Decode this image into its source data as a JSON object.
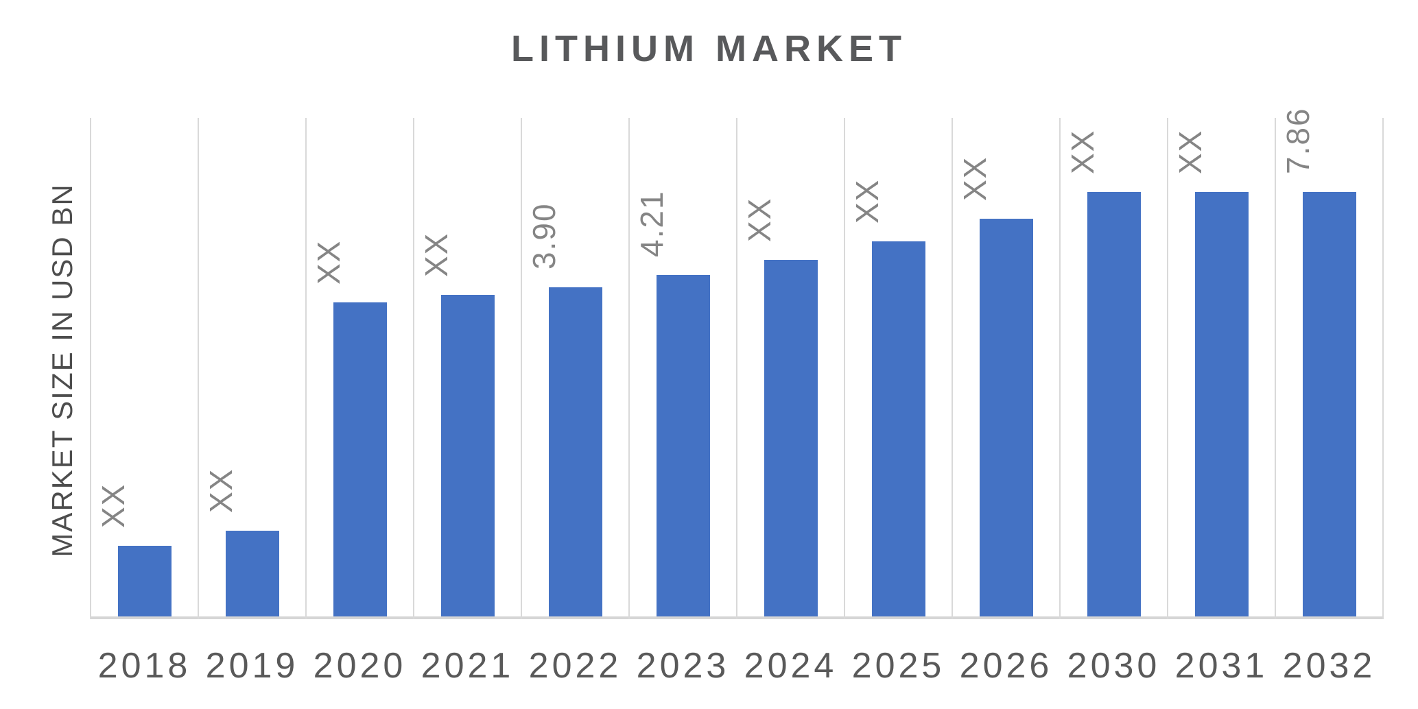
{
  "page": {
    "background_color": "#FFFFFF"
  },
  "chart": {
    "title": "LITHIUM MARKET",
    "y_axis_label": "MARKET SIZE IN USD BN",
    "chart_data": {
      "type": "bar",
      "title": "LITHIUM MARKET",
      "xlabel": "",
      "ylabel": "MARKET SIZE IN USD BN",
      "categories": [
        "2018",
        "2019",
        "2020",
        "2021",
        "2022",
        "2023",
        "2024",
        "2025",
        "2026",
        "2030",
        "2031",
        "2032"
      ],
      "values": [
        null,
        null,
        null,
        null,
        3.9,
        4.21,
        null,
        null,
        null,
        null,
        null,
        7.86
      ],
      "bar_labels": [
        "XX",
        "XX",
        "XX",
        "XX",
        "3.90",
        "4.21",
        "XX",
        "XX",
        "XX",
        "XX",
        "XX",
        "7.86"
      ],
      "bar_height_pct": [
        14.2,
        17.2,
        63.0,
        64.5,
        66.0,
        68.5,
        71.5,
        75.2,
        79.8,
        85.1,
        85.1,
        85.1
      ],
      "series_color": "#4472C4",
      "gridline_color": "#D9D9D9",
      "axis_line_color": "#D6D6D6",
      "value_label_color": "#858585",
      "tick_label_color": "#595959",
      "title_color": "#58595B",
      "legend": "none",
      "gridlines": "vertical-only",
      "y_axis_ticks": "none",
      "value_label_rotation_deg": -90,
      "ylim_note": "no numeric y-axis scale shown"
    }
  }
}
